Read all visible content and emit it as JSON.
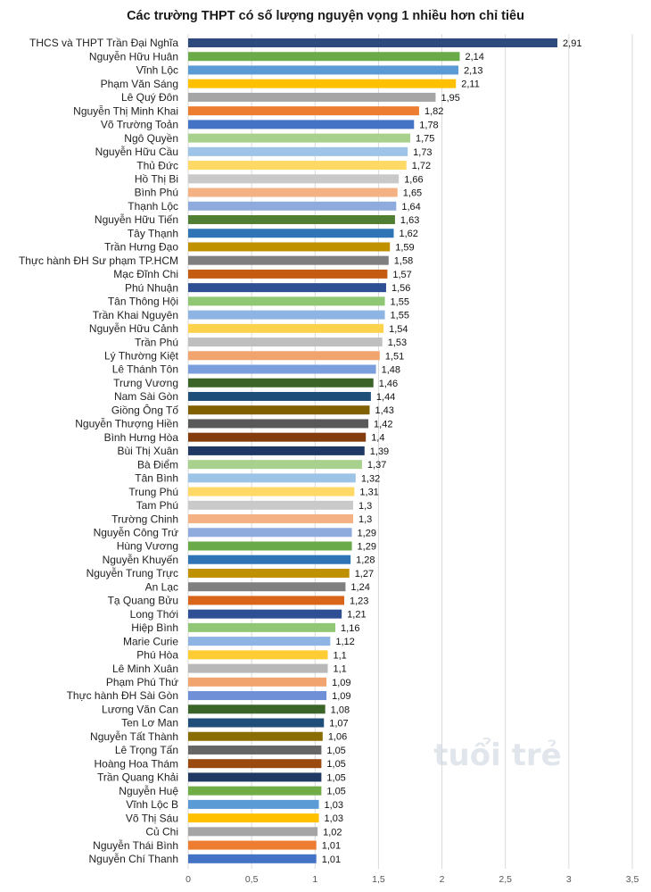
{
  "chart_data": {
    "type": "bar",
    "orientation": "horizontal",
    "title": "Các trường THPT có số lượng nguyện vọng 1 nhiều hơn chỉ tiêu",
    "xlim": [
      0,
      3.5
    ],
    "x_ticks": [
      "0",
      "0,5",
      "1",
      "1,5",
      "2",
      "2,5",
      "3",
      "3,5"
    ],
    "grid": true,
    "legend": "none",
    "watermark": "tuổi trẻ",
    "categories": [
      "THCS và THPT Trần Đại Nghĩa",
      "Nguyễn Hữu Huân",
      "Vĩnh Lộc",
      "Phạm Văn Sáng",
      "Lê Quý Đôn",
      "Nguyễn Thị Minh Khai",
      "Võ Trường Toản",
      "Ngô Quyền",
      "Nguyễn Hữu Cầu",
      "Thủ Đức",
      "Hồ Thị Bi",
      "Bình Phú",
      "Thạnh Lộc",
      "Nguyễn Hữu Tiến",
      "Tây Thạnh",
      "Trần Hưng Đạo",
      "Thực hành ĐH Sư phạm TP.HCM",
      "Mạc Đĩnh Chi",
      "Phú Nhuận",
      "Tân Thông Hội",
      "Trần Khai Nguyên",
      "Nguyễn Hữu Cảnh",
      "Trần Phú",
      "Lý Thường Kiệt",
      "Lê Thánh Tôn",
      "Trưng Vương",
      "Nam Sài Gòn",
      "Giồng Ông Tố",
      "Nguyễn Thượng Hiền",
      "Bình Hưng Hòa",
      "Bùi Thị Xuân",
      "Bà Điểm",
      "Tân Bình",
      "Trung Phú",
      "Tam Phú",
      "Trường Chinh",
      "Nguyễn Công Trứ",
      "Hùng Vương",
      "Nguyễn Khuyến",
      "Nguyễn Trung Trực",
      "An Lạc",
      "Tạ Quang Bửu",
      "Long Thới",
      "Hiệp Bình",
      "Marie Curie",
      "Phú Hòa",
      "Lê Minh Xuân",
      "Phạm Phú Thứ",
      "Thực hành ĐH Sài Gòn",
      "Lương Văn Can",
      "Ten Lơ Man",
      "Nguyễn Tất Thành",
      "Lê Trọng Tấn",
      "Hoàng Hoa Thám",
      "Trần Quang Khải",
      "Nguyễn Huệ",
      "Vĩnh Lộc B",
      "Võ Thị Sáu",
      "Củ Chi",
      "Nguyễn Thái Bình",
      "Nguyễn Chí Thanh"
    ],
    "values": [
      2.91,
      2.14,
      2.13,
      2.11,
      1.95,
      1.82,
      1.78,
      1.75,
      1.73,
      1.72,
      1.66,
      1.65,
      1.64,
      1.63,
      1.62,
      1.59,
      1.58,
      1.57,
      1.56,
      1.55,
      1.55,
      1.54,
      1.53,
      1.51,
      1.48,
      1.46,
      1.44,
      1.43,
      1.42,
      1.4,
      1.39,
      1.37,
      1.32,
      1.31,
      1.3,
      1.3,
      1.29,
      1.29,
      1.28,
      1.27,
      1.24,
      1.23,
      1.21,
      1.16,
      1.12,
      1.1,
      1.1,
      1.09,
      1.09,
      1.08,
      1.07,
      1.06,
      1.05,
      1.05,
      1.05,
      1.05,
      1.03,
      1.03,
      1.02,
      1.01,
      1.01
    ],
    "value_labels": [
      "2,91",
      "2,14",
      "2,13",
      "2,11",
      "1,95",
      "1,82",
      "1,78",
      "1,75",
      "1,73",
      "1,72",
      "1,66",
      "1,65",
      "1,64",
      "1,63",
      "1,62",
      "1,59",
      "1,58",
      "1,57",
      "1,56",
      "1,55",
      "1,55",
      "1,54",
      "1,53",
      "1,51",
      "1,48",
      "1,46",
      "1,44",
      "1,43",
      "1,42",
      "1,4",
      "1,39",
      "1,37",
      "1,32",
      "1,31",
      "1,3",
      "1,3",
      "1,29",
      "1,29",
      "1,28",
      "1,27",
      "1,24",
      "1,23",
      "1,21",
      "1,16",
      "1,12",
      "1,1",
      "1,1",
      "1,09",
      "1,09",
      "1,08",
      "1,07",
      "1,06",
      "1,05",
      "1,05",
      "1,05",
      "1,05",
      "1,03",
      "1,03",
      "1,02",
      "1,01",
      "1,01"
    ],
    "colors": [
      "#2e4a7d",
      "#6aaa48",
      "#5b9bd5",
      "#ffc000",
      "#a5a5a5",
      "#ed7d31",
      "#4472c4",
      "#a9d18e",
      "#9dc3e6",
      "#ffd966",
      "#c9c9c9",
      "#f4b183",
      "#8faadc",
      "#507e32",
      "#2f75b5",
      "#bf9000",
      "#7f7f7f",
      "#c55a11",
      "#2f4f94",
      "#8fc774",
      "#8db4e2",
      "#ffd24d",
      "#bfbfbf",
      "#f2a46f",
      "#7b9fdc",
      "#3a6428",
      "#1f4e79",
      "#806000",
      "#595959",
      "#843c0c",
      "#203864",
      "#a9d18e",
      "#9dc3e6",
      "#ffd966",
      "#c9c9c9",
      "#f4b183",
      "#8faadc",
      "#6aaa48",
      "#2f75b5",
      "#bf9000",
      "#7f7f7f",
      "#d9651a",
      "#2f4f94",
      "#8fc774",
      "#8db4e2",
      "#ffcc33",
      "#b8b8b8",
      "#f2a46f",
      "#6f8fd6",
      "#3a6428",
      "#1f4e79",
      "#8a6d00",
      "#666666",
      "#9a4a0e",
      "#203864",
      "#70ad47",
      "#5b9bd5",
      "#ffc000",
      "#a5a5a5",
      "#ed7d31",
      "#4472c4"
    ]
  }
}
